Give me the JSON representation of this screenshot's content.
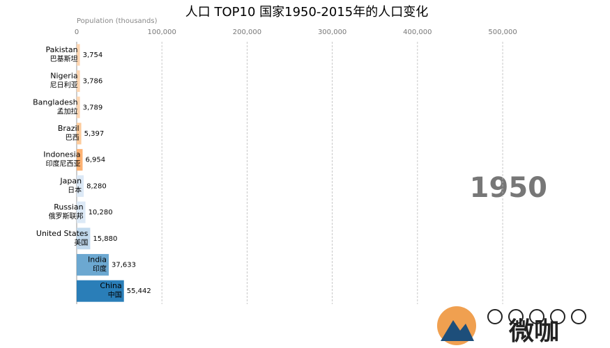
{
  "chart_data": {
    "type": "barh",
    "title": "人口 TOP10 国家1950-2015年的人口变化",
    "xlabel": "Population (thousands)",
    "year": "1950",
    "watermark": "微咖",
    "categories": [
      "Pakistan",
      "Nigeria",
      "Bangladesh",
      "Brazil",
      "Indonesia",
      "Japan",
      "Russian",
      "United States",
      "India",
      "China"
    ],
    "categories_zh": [
      "巴基斯坦",
      "尼日利亚",
      "孟加拉",
      "巴西",
      "印度尼西亚",
      "日本",
      "俄罗斯联邦",
      "美国",
      "印度",
      "中国"
    ],
    "values": [
      3754,
      3786,
      3789,
      5397,
      6954,
      8280,
      10280,
      15880,
      37633,
      55442
    ],
    "value_labels": [
      "3,754",
      "3,786",
      "3,789",
      "5,397",
      "6,954",
      "8,280",
      "10,280",
      "15,880",
      "37,633",
      "55,442"
    ],
    "colors": [
      "#fdd4ae",
      "#fdd4ae",
      "#fdd4ae",
      "#fdc998",
      "#fdae6b",
      "#dae8f5",
      "#dae8f5",
      "#bfd8ed",
      "#64a3cf",
      "#1f77b4"
    ],
    "xlim": [
      0,
      570000
    ],
    "xticks": [
      0,
      {
        "value": 100000,
        "label": "100,000"
      },
      {
        "value": 200000,
        "label": "200,000"
      },
      {
        "value": 300000,
        "label": "300,000"
      },
      {
        "value": 400000,
        "label": "400,000"
      },
      {
        "value": 500000,
        "label": "500,000"
      }
    ],
    "grid": true
  }
}
